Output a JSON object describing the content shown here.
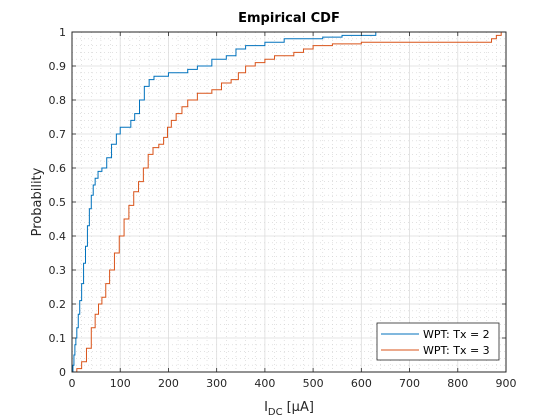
{
  "chart_data": {
    "type": "line",
    "title": "Empirical CDF",
    "xlabel": {
      "main": "I",
      "sub": "DC",
      "unit": "[μA]"
    },
    "ylabel": "Probability",
    "xlim": [
      0,
      900
    ],
    "ylim": [
      0,
      1
    ],
    "xticks": [
      0,
      100,
      200,
      300,
      400,
      500,
      600,
      700,
      800,
      900
    ],
    "yticks": [
      0,
      0.1,
      0.2,
      0.3,
      0.4,
      0.5,
      0.6,
      0.7,
      0.8,
      0.9,
      1
    ],
    "xtick_labels": [
      "0",
      "100",
      "200",
      "300",
      "400",
      "500",
      "600",
      "700",
      "800",
      "900"
    ],
    "ytick_labels": [
      "0",
      "0.1",
      "0.2",
      "0.3",
      "0.4",
      "0.5",
      "0.6",
      "0.7",
      "0.8",
      "0.9",
      "1"
    ],
    "grid": true,
    "minor_grid": true,
    "legend_position": "bottom-right",
    "series": [
      {
        "name": "WPT: Tx = 2",
        "color": "#0072BD",
        "points": [
          [
            0,
            0
          ],
          [
            2,
            0.02
          ],
          [
            4,
            0.05
          ],
          [
            6,
            0.08
          ],
          [
            8,
            0.1
          ],
          [
            10,
            0.13
          ],
          [
            13,
            0.17
          ],
          [
            16,
            0.21
          ],
          [
            20,
            0.26
          ],
          [
            24,
            0.32
          ],
          [
            28,
            0.37
          ],
          [
            32,
            0.43
          ],
          [
            36,
            0.48
          ],
          [
            40,
            0.52
          ],
          [
            44,
            0.55
          ],
          [
            48,
            0.57
          ],
          [
            54,
            0.59
          ],
          [
            62,
            0.6
          ],
          [
            72,
            0.63
          ],
          [
            82,
            0.67
          ],
          [
            92,
            0.7
          ],
          [
            100,
            0.72
          ],
          [
            115,
            0.72
          ],
          [
            122,
            0.74
          ],
          [
            130,
            0.76
          ],
          [
            140,
            0.8
          ],
          [
            150,
            0.84
          ],
          [
            160,
            0.86
          ],
          [
            170,
            0.87
          ],
          [
            180,
            0.87
          ],
          [
            200,
            0.88
          ],
          [
            220,
            0.88
          ],
          [
            240,
            0.89
          ],
          [
            260,
            0.9
          ],
          [
            290,
            0.92
          ],
          [
            320,
            0.93
          ],
          [
            340,
            0.95
          ],
          [
            360,
            0.96
          ],
          [
            400,
            0.97
          ],
          [
            440,
            0.98
          ],
          [
            480,
            0.98
          ],
          [
            520,
            0.985
          ],
          [
            560,
            0.99
          ],
          [
            630,
            0.99
          ],
          [
            630,
            1
          ]
        ]
      },
      {
        "name": "WPT: Tx = 3",
        "color": "#D95319",
        "points": [
          [
            0,
            0
          ],
          [
            10,
            0.01
          ],
          [
            20,
            0.03
          ],
          [
            30,
            0.07
          ],
          [
            40,
            0.13
          ],
          [
            48,
            0.17
          ],
          [
            55,
            0.2
          ],
          [
            62,
            0.22
          ],
          [
            70,
            0.26
          ],
          [
            78,
            0.3
          ],
          [
            88,
            0.35
          ],
          [
            98,
            0.4
          ],
          [
            108,
            0.45
          ],
          [
            118,
            0.49
          ],
          [
            128,
            0.53
          ],
          [
            138,
            0.56
          ],
          [
            148,
            0.6
          ],
          [
            158,
            0.64
          ],
          [
            168,
            0.66
          ],
          [
            180,
            0.67
          ],
          [
            190,
            0.69
          ],
          [
            198,
            0.72
          ],
          [
            206,
            0.74
          ],
          [
            216,
            0.76
          ],
          [
            228,
            0.78
          ],
          [
            240,
            0.8
          ],
          [
            260,
            0.82
          ],
          [
            290,
            0.83
          ],
          [
            310,
            0.85
          ],
          [
            330,
            0.86
          ],
          [
            345,
            0.88
          ],
          [
            360,
            0.9
          ],
          [
            380,
            0.91
          ],
          [
            400,
            0.92
          ],
          [
            420,
            0.93
          ],
          [
            440,
            0.93
          ],
          [
            460,
            0.94
          ],
          [
            480,
            0.95
          ],
          [
            500,
            0.96
          ],
          [
            520,
            0.96
          ],
          [
            540,
            0.965
          ],
          [
            600,
            0.97
          ],
          [
            700,
            0.97
          ],
          [
            800,
            0.97
          ],
          [
            860,
            0.97
          ],
          [
            870,
            0.98
          ],
          [
            880,
            0.99
          ],
          [
            890,
            1
          ]
        ]
      }
    ]
  }
}
